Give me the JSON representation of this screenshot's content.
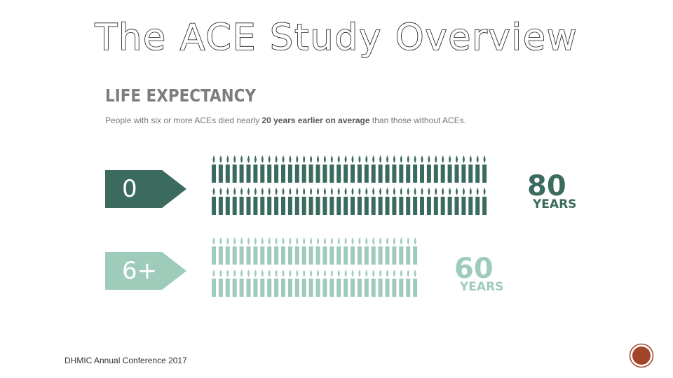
{
  "slide": {
    "title": "The ACE Study Overview",
    "footer": "DHMIC Annual Conference 2017"
  },
  "infographic": {
    "heading": "LIFE EXPECTANCY",
    "subtitle_pre": "People with six or more ACEs died nearly ",
    "subtitle_bold": "20 years earlier on average",
    "subtitle_post": " than those without ACEs.",
    "groups": [
      {
        "label": "0",
        "age_number": "80",
        "age_unit": "YEARS",
        "years": 80,
        "color": "#3b6b5e"
      },
      {
        "label": "6+",
        "age_number": "60",
        "age_unit": "YEARS",
        "years": 60,
        "color": "#9ecbba"
      }
    ]
  }
}
